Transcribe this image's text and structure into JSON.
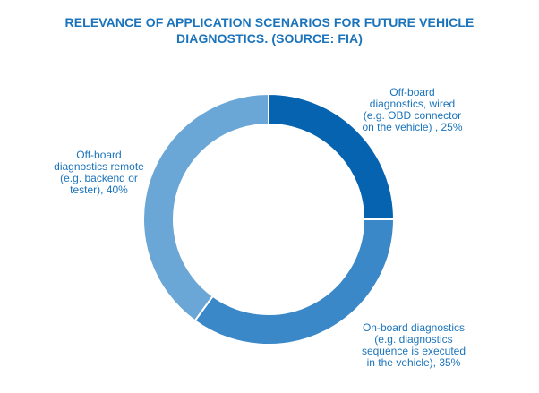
{
  "chart_data": {
    "type": "pie",
    "variant": "donut",
    "title_lines": [
      "RELEVANCE OF APPLICATION SCENARIOS FOR FUTURE VEHICLE",
      "DIAGNOSTICS. (SOURCE: FIA)"
    ],
    "slices": [
      {
        "value": 25,
        "color": "#0563b0",
        "label_lines": [
          "Off-board",
          "diagnostics, wired",
          "(e.g. OBD connector",
          "on the vehicle) , 25%"
        ]
      },
      {
        "value": 35,
        "color": "#3a88c8",
        "label_lines": [
          "On-board diagnostics",
          "(e.g. diagnostics",
          "sequence is executed",
          "in the vehicle), 35%"
        ]
      },
      {
        "value": 40,
        "color": "#6aa6d6",
        "label_lines": [
          "Off-board",
          "diagnostics remote",
          "(e.g. backend or",
          "tester), 40%"
        ]
      }
    ],
    "start_angle": "12 o'clock",
    "direction": "clockwise",
    "legend": "none"
  }
}
